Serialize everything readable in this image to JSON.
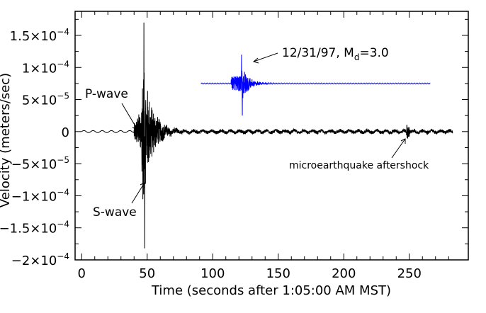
{
  "chart_data": {
    "type": "line",
    "xlabel": "Time (seconds after 1:05:00 AM MST)",
    "ylabel": "Velocity (meters/sec)",
    "xlim": [
      -5,
      295
    ],
    "ylim": [
      -0.0002,
      0.0001875
    ],
    "xticks": [
      0,
      50,
      100,
      150,
      200,
      250
    ],
    "xtick_labels": [
      "0",
      "50",
      "100",
      "150",
      "200",
      "250"
    ],
    "yticks": [
      0.00015,
      0.0001,
      5e-05,
      0,
      -5e-05,
      -0.0001,
      -0.00015,
      -0.0002
    ],
    "ytick_labels": [
      {
        "mant": "1.5×10",
        "exp": "−4"
      },
      {
        "mant": "1×10",
        "exp": "−4"
      },
      {
        "mant": "5×10",
        "exp": "−5"
      },
      {
        "mant": "0",
        "exp": ""
      },
      {
        "mant": "−5×10",
        "exp": "−5"
      },
      {
        "mant": "−1×10",
        "exp": "−4"
      },
      {
        "mant": "−1.5×10",
        "exp": "−4"
      },
      {
        "mant": "−2×10",
        "exp": "−4"
      }
    ],
    "grid": false,
    "series": [
      {
        "color": "#000000",
        "x_range": [
          0,
          283
        ],
        "baseline": 0,
        "noise_amplitude": 2e-06,
        "p_wave_time": 40,
        "s_wave_time": 46,
        "max_velocity": 0.00017,
        "min_velocity": -0.000182,
        "aftershock_time": 249
      },
      {
        "color": "#0000ff",
        "x_range": [
          91,
          266
        ],
        "baseline": 7.5e-05,
        "event_onset": 114,
        "event_peak_time": 122,
        "max_velocity": 0.00012,
        "min_velocity": 2.5e-05
      }
    ],
    "annotations": {
      "p_wave": {
        "text": "P-wave",
        "at": [
          40,
          0
        ]
      },
      "s_wave": {
        "text": "S-wave",
        "at": [
          46,
          -7e-05
        ]
      },
      "event": {
        "text": "12/31/97, M",
        "sub": "d",
        "suffix": "=3.0",
        "at": [
          123,
          0.0001
        ]
      },
      "aftershock": {
        "text": "microearthquake aftershock",
        "at": [
          249,
          -5e-06
        ]
      }
    }
  }
}
